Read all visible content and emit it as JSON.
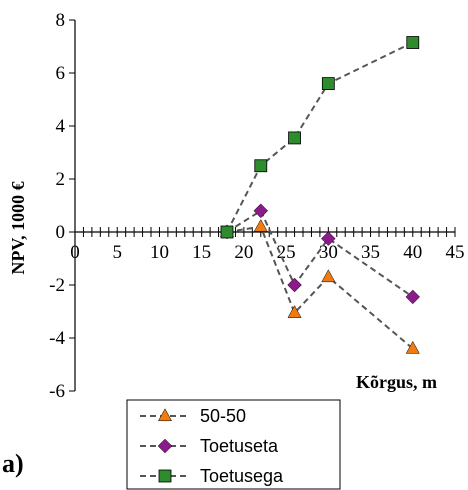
{
  "chart_data": {
    "type": "line",
    "panel_label": "a)",
    "xlabel": "Kõrgus, m",
    "ylabel": "NPV, 1000 €",
    "xlim": [
      0,
      45
    ],
    "ylim": [
      -6,
      8
    ],
    "x_ticks": [
      "0",
      "5",
      "10",
      "15",
      "20",
      "25",
      "30",
      "35",
      "40",
      "45"
    ],
    "y_ticks": [
      "-6",
      "-4",
      "-2",
      "0",
      "2",
      "4",
      "6",
      "8"
    ],
    "x_minor_tick_step": 1,
    "grid": false,
    "legend_position": "bottom-center",
    "series": [
      {
        "name": "50-50",
        "marker": "triangle",
        "color": "#f07b12",
        "line_style": "dashed",
        "x": [
          18,
          22,
          26,
          30,
          40
        ],
        "y": [
          0.0,
          0.2,
          -3.05,
          -1.7,
          -4.4
        ]
      },
      {
        "name": "Toetuseta",
        "marker": "diamond",
        "color": "#8b1a8b",
        "line_style": "dashed",
        "x": [
          18,
          22,
          26,
          30,
          40
        ],
        "y": [
          0.0,
          0.8,
          -2.0,
          -0.25,
          -2.45
        ]
      },
      {
        "name": "Toetusega",
        "marker": "square",
        "color": "#2e8b2e",
        "line_style": "dashed",
        "x": [
          18,
          22,
          26,
          30,
          40
        ],
        "y": [
          0.0,
          2.5,
          3.55,
          5.6,
          7.15
        ]
      }
    ]
  }
}
